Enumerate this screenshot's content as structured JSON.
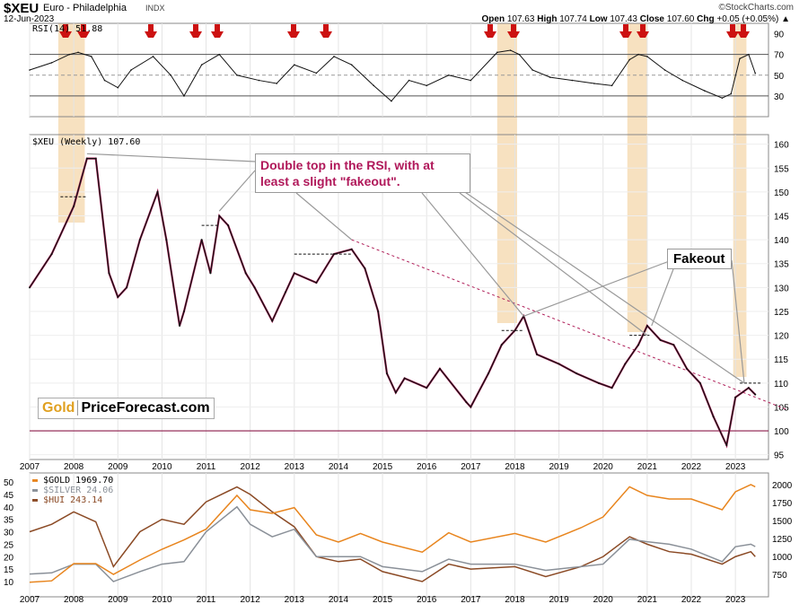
{
  "header": {
    "symbol": "$XEU",
    "name": "Euro - Philadelphia",
    "exchange": "INDX",
    "date": "12-Jun-2023",
    "credit": "©StockCharts.com",
    "open_label": "Open",
    "open": "107.63",
    "high_label": "High",
    "high": "107.74",
    "low_label": "Low",
    "low": "107.43",
    "close_label": "Close",
    "close": "107.60",
    "chg_label": "Chg",
    "chg": "+0.05 (+0.05%)"
  },
  "annotations": {
    "double_top": "Double top in the RSI, with at least a slight \"fakeout\".",
    "fakeout": "Fakeout",
    "logo_gold": "Gold",
    "logo_rest": "PriceForecast.com"
  },
  "colors": {
    "highlight": "#f5d9b0",
    "arrow": "#cc1111",
    "price": "#111111",
    "trend": "#b0205a",
    "gold": "#e8851e",
    "silver": "#8a9098",
    "hui": "#8b4a25"
  },
  "chart_data": [
    {
      "type": "line",
      "title": "RSI(14) 51.88",
      "yticks": [
        90,
        70,
        50,
        30
      ],
      "ylim": [
        10,
        100
      ],
      "reference_lines": [
        70,
        50,
        30
      ],
      "x": [
        2007.0,
        2007.5,
        2007.9,
        2008.1,
        2008.4,
        2008.7,
        2009.0,
        2009.3,
        2009.8,
        2010.2,
        2010.5,
        2010.9,
        2011.3,
        2011.7,
        2012.2,
        2012.6,
        2013.0,
        2013.5,
        2013.9,
        2014.3,
        2014.8,
        2015.2,
        2015.6,
        2016.0,
        2016.5,
        2017.0,
        2017.6,
        2017.9,
        2018.1,
        2018.4,
        2018.8,
        2019.3,
        2019.8,
        2020.2,
        2020.6,
        2020.8,
        2021.0,
        2021.4,
        2021.8,
        2022.3,
        2022.7,
        2022.9,
        2023.1,
        2023.3,
        2023.45
      ],
      "values": [
        55,
        62,
        70,
        72,
        68,
        45,
        38,
        55,
        68,
        50,
        30,
        60,
        70,
        50,
        45,
        42,
        60,
        52,
        68,
        60,
        40,
        25,
        45,
        40,
        50,
        45,
        72,
        74,
        70,
        55,
        48,
        45,
        42,
        40,
        65,
        70,
        68,
        55,
        45,
        35,
        28,
        32,
        66,
        70,
        51.88
      ]
    },
    {
      "type": "line",
      "title": "$XEU (Weekly) 107.60",
      "yticks": [
        160,
        155,
        150,
        145,
        140,
        135,
        130,
        125,
        120,
        115,
        110,
        105,
        100,
        95
      ],
      "ylim": [
        94,
        162
      ],
      "xticks": [
        "2007",
        "2008",
        "2009",
        "2010",
        "2011",
        "2012",
        "2013",
        "2014",
        "2015",
        "2016",
        "2017",
        "2018",
        "2019",
        "2020",
        "2021",
        "2022",
        "2023"
      ],
      "x": [
        2007.0,
        2007.5,
        2008.0,
        2008.3,
        2008.5,
        2008.8,
        2009.0,
        2009.2,
        2009.5,
        2009.9,
        2010.1,
        2010.4,
        2010.5,
        2010.9,
        2011.1,
        2011.3,
        2011.5,
        2011.9,
        2012.1,
        2012.5,
        2012.8,
        2013.0,
        2013.5,
        2013.9,
        2014.3,
        2014.6,
        2014.9,
        2015.1,
        2015.3,
        2015.5,
        2016.0,
        2016.3,
        2016.9,
        2017.0,
        2017.4,
        2017.7,
        2018.0,
        2018.2,
        2018.5,
        2019.0,
        2019.4,
        2019.9,
        2020.2,
        2020.5,
        2020.8,
        2021.0,
        2021.3,
        2021.6,
        2021.9,
        2022.2,
        2022.5,
        2022.8,
        2023.0,
        2023.3,
        2023.45
      ],
      "values": [
        130,
        137,
        147,
        157,
        157,
        133,
        128,
        130,
        140,
        150,
        140,
        122,
        125,
        140,
        133,
        145,
        143,
        133,
        130,
        123,
        129,
        133,
        131,
        137,
        138,
        134,
        125,
        112,
        108,
        111,
        109,
        113,
        106,
        105,
        112,
        118,
        121,
        124,
        116,
        114,
        112,
        110,
        109,
        114,
        118,
        122,
        119,
        118,
        113,
        110,
        103,
        97,
        107,
        109,
        107.6
      ],
      "horizontal_line": 100
    },
    {
      "type": "line",
      "x": [
        2007.0,
        2007.5,
        2008.0,
        2008.5,
        2008.9,
        2009.5,
        2010.0,
        2010.5,
        2011.0,
        2011.7,
        2012.0,
        2012.5,
        2013.0,
        2013.5,
        2014.0,
        2014.5,
        2015.0,
        2015.9,
        2016.5,
        2017.0,
        2018.0,
        2018.7,
        2019.5,
        2020.0,
        2020.6,
        2021.0,
        2021.5,
        2022.0,
        2022.7,
        2023.0,
        2023.35,
        2023.45
      ],
      "yticks_left": [
        50,
        45,
        40,
        35,
        30,
        25,
        20,
        15,
        10
      ],
      "yticks_right": [
        2000,
        1750,
        1500,
        1250,
        1000,
        750
      ],
      "series": [
        {
          "name": "$GOLD 1969.70",
          "axis": "right",
          "values": [
            640,
            660,
            900,
            900,
            750,
            950,
            1100,
            1230,
            1380,
            1850,
            1650,
            1600,
            1680,
            1300,
            1200,
            1320,
            1200,
            1060,
            1330,
            1200,
            1320,
            1200,
            1400,
            1550,
            1970,
            1850,
            1800,
            1800,
            1650,
            1900,
            2000,
            1969.7
          ]
        },
        {
          "name": "$SILVER 24.06",
          "axis": "left",
          "values": [
            13,
            13.5,
            17,
            17,
            10,
            14,
            17,
            18,
            30,
            40,
            33,
            28,
            31,
            20,
            20,
            20,
            16,
            14,
            19,
            17,
            17,
            14.5,
            16,
            17,
            27,
            26,
            25,
            23,
            18,
            24,
            25,
            24.06
          ]
        },
        {
          "name": "$HUI 243.14",
          "axis": "left",
          "values": [
            30,
            33,
            38,
            34,
            16,
            30,
            35,
            33,
            42,
            48,
            45,
            38,
            32,
            20,
            18,
            19,
            14,
            10,
            17,
            15,
            16,
            12,
            16,
            20,
            28,
            25,
            22,
            21,
            17,
            20,
            22,
            20
          ]
        }
      ],
      "xticks": [
        "2007",
        "2008",
        "2009",
        "2010",
        "2011",
        "2012",
        "2013",
        "2014",
        "2015",
        "2016",
        "2017",
        "2018",
        "2019",
        "2020",
        "2021",
        "2022",
        "2023"
      ]
    }
  ]
}
